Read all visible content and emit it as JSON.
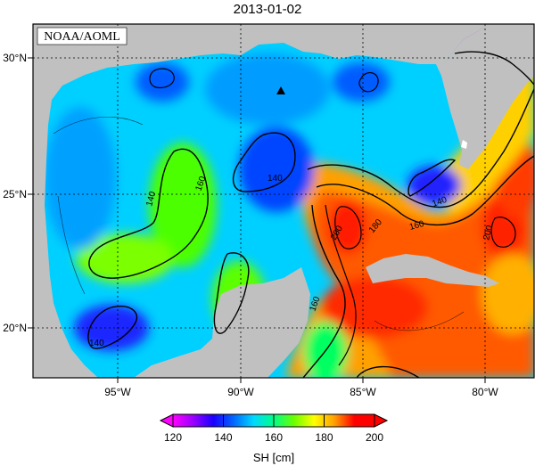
{
  "map": {
    "date": "2013-01-02",
    "credit": "NOAA/AOML",
    "lat_ticks": [
      "20°N",
      "25°N",
      "30°N"
    ],
    "lon_ticks": [
      "95°W",
      "90°W",
      "85°W",
      "80°W"
    ],
    "contour_labels": [
      "140",
      "160",
      "160",
      "140",
      "160",
      "200",
      "180",
      "160",
      "140",
      "200",
      "140",
      "160"
    ],
    "marker": "triangle-station",
    "colors": {
      "land": "#c0c0c0",
      "frame": "#000000",
      "grid": "#000000"
    }
  },
  "colorbar": {
    "label": "SH [cm]",
    "ticks": [
      "120",
      "140",
      "160",
      "180",
      "200"
    ],
    "vmin": 120,
    "vmax": 200,
    "colors": [
      "#ff00ff",
      "#9a00ff",
      "#1a00ff",
      "#0066ff",
      "#00d8ff",
      "#00ff88",
      "#6aff00",
      "#ffff00",
      "#ffa000",
      "#ff0000",
      "#ff0000"
    ]
  }
}
